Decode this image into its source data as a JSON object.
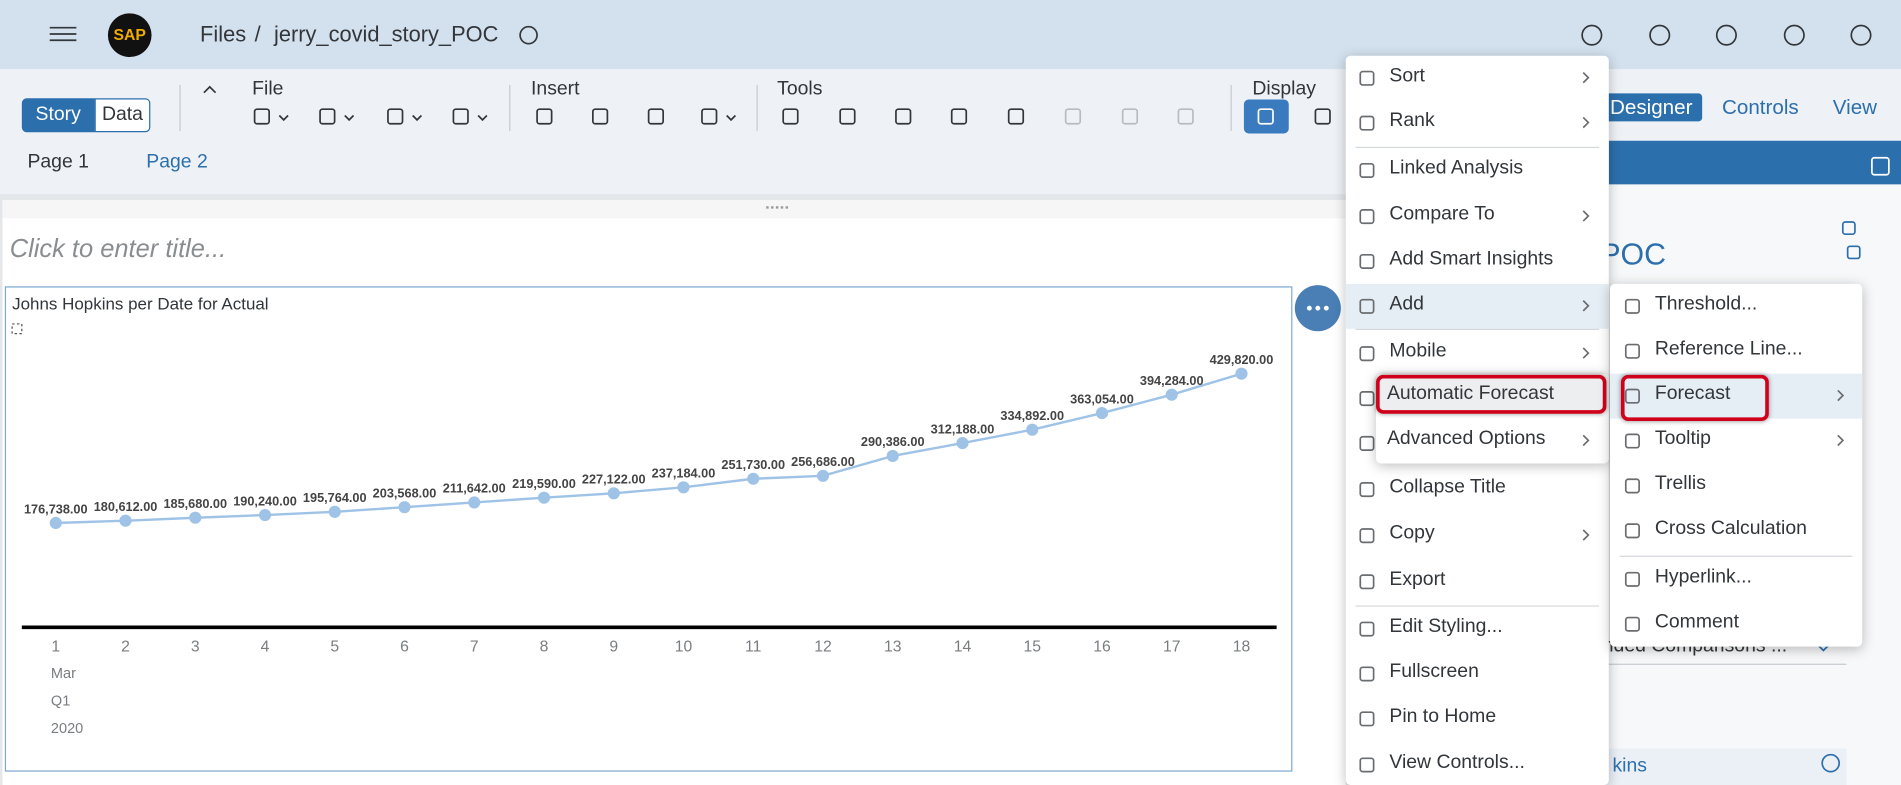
{
  "header": {
    "logo": "SAP",
    "breadcrumb_root": "Files",
    "separator": "/",
    "file_name": "jerry_covid_story_POC"
  },
  "toolbar": {
    "modes": [
      "Story",
      "Data"
    ],
    "groups": [
      "File",
      "Insert",
      "Tools",
      "Display"
    ],
    "right_tabs": [
      "Designer",
      "Controls",
      "View"
    ]
  },
  "pages": [
    "Page 1",
    "Page 2"
  ],
  "story_title_placeholder": "Click to enter title...",
  "chart_data": {
    "type": "line",
    "title": "Johns Hopkins per Date for Actual",
    "color": "#9fc3e7",
    "categories": [
      "1",
      "2",
      "3",
      "4",
      "5",
      "6",
      "7",
      "8",
      "9",
      "10",
      "11",
      "12",
      "13",
      "14",
      "15",
      "16",
      "17",
      "18"
    ],
    "x_hierarchy": [
      "Mar",
      "Q1",
      "2020"
    ],
    "values": [
      176738,
      180612,
      185680,
      190240,
      195764,
      203568,
      211642,
      219590,
      227122,
      237184,
      251730,
      256686,
      290386,
      312188,
      334892,
      363054,
      394284,
      429820
    ],
    "value_labels": [
      "176,738.00",
      "180,612.00",
      "185,680.00",
      "190,240.00",
      "195,764.00",
      "203,568.00",
      "211,642.00",
      "219,590.00",
      "227,122.00",
      "237,184.00",
      "251,730.00",
      "256,686.00",
      "290,386.00",
      "312,188.00",
      "334,892.00",
      "363,054.00",
      "394,284.00",
      "429,820.00"
    ]
  },
  "context_menu": {
    "items": [
      {
        "label": "Sort",
        "submenu": true
      },
      {
        "label": "Rank",
        "submenu": true
      },
      {
        "label": "Linked Analysis"
      },
      {
        "label": "Compare To",
        "submenu": true
      },
      {
        "label": "Add Smart Insights"
      },
      {
        "label": "Add",
        "submenu": true,
        "highlighted": true
      },
      {
        "label": "Mobile",
        "submenu": true
      },
      {
        "label": "Collapse Title"
      },
      {
        "label": "Copy",
        "submenu": true
      },
      {
        "label": "Export"
      },
      {
        "label": "Edit Styling..."
      },
      {
        "label": "Fullscreen"
      },
      {
        "label": "Pin to Home"
      },
      {
        "label": "View Controls..."
      }
    ]
  },
  "forecast_submenu": {
    "items": [
      {
        "label": "Automatic Forecast",
        "outlined": true
      },
      {
        "label": "Advanced Options",
        "submenu": true
      }
    ]
  },
  "add_submenu": {
    "items": [
      {
        "label": "Threshold..."
      },
      {
        "label": "Reference Line..."
      },
      {
        "label": "Forecast",
        "submenu": true,
        "highlighted": true,
        "outlined": true
      },
      {
        "label": "Tooltip",
        "submenu": true
      },
      {
        "label": "Trellis"
      },
      {
        "label": "Cross Calculation"
      },
      {
        "label": "Hyperlink..."
      },
      {
        "label": "Comment"
      }
    ]
  },
  "side_panel": {
    "title_fragment": "POC",
    "dropdown_fragment": "nded Comparisons ...",
    "field_fragment": "kins"
  }
}
